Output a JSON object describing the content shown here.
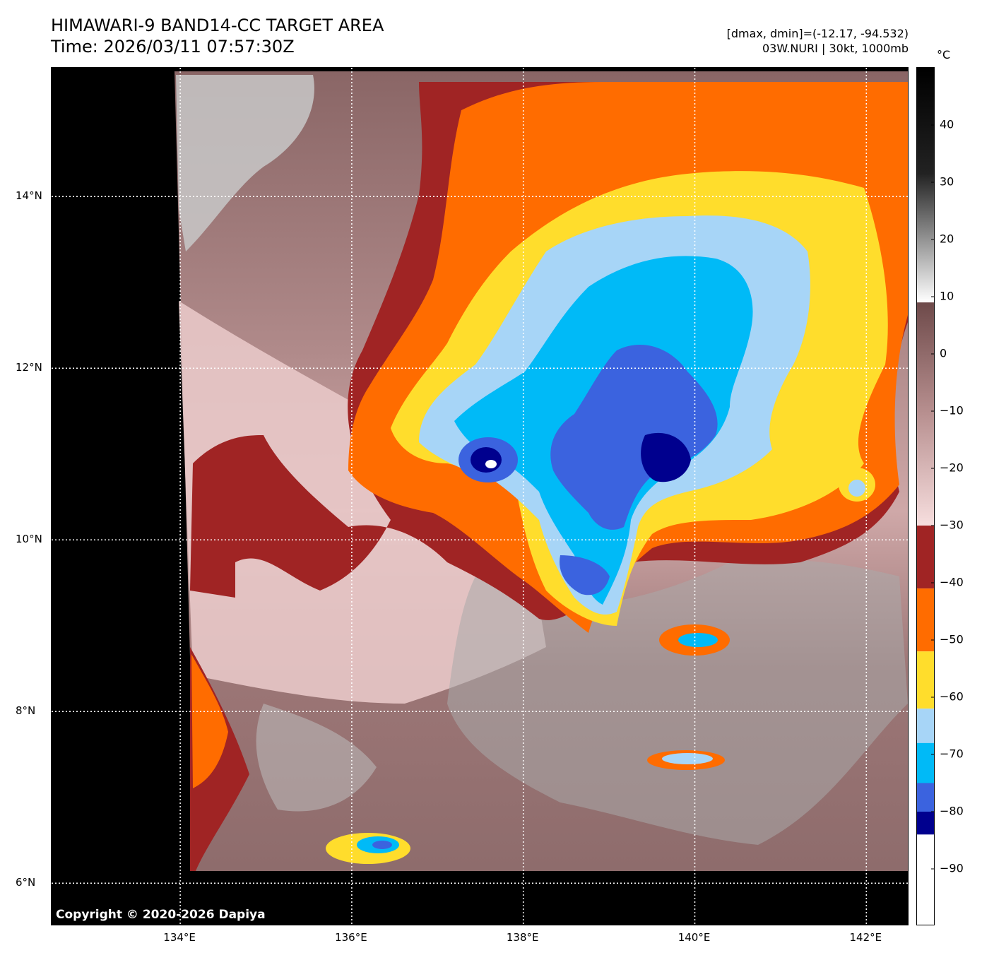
{
  "header": {
    "title_line1": "HIMAWARI-9 BAND14-CC TARGET AREA",
    "title_line2": "Time: 2026/03/11 07:57:30Z",
    "dmax_dmin": "[dmax, dmin]=(-12.17, -94.532)",
    "storm": "03W.NURI | 30kt, 1000mb"
  },
  "map": {
    "copyright": "Copyright © 2020-2026 Dapiya",
    "lon_range": [
      132.5,
      142.5
    ],
    "lat_range": [
      5.5,
      15.5
    ],
    "x_ticks": [
      {
        "value": 134,
        "label": "134°E"
      },
      {
        "value": 136,
        "label": "136°E"
      },
      {
        "value": 138,
        "label": "138°E"
      },
      {
        "value": 140,
        "label": "140°E"
      },
      {
        "value": 142,
        "label": "142°E"
      }
    ],
    "y_ticks": [
      {
        "value": 14,
        "label": "14°N"
      },
      {
        "value": 12,
        "label": "12°N"
      },
      {
        "value": 10,
        "label": "10°N"
      },
      {
        "value": 8,
        "label": "8°N"
      },
      {
        "value": 6,
        "label": "6°N"
      }
    ],
    "grid": true
  },
  "colorbar": {
    "unit": "°C",
    "range": [
      -100,
      50
    ],
    "ticks": [
      {
        "value": 40,
        "label": "40"
      },
      {
        "value": 30,
        "label": "30"
      },
      {
        "value": 20,
        "label": "20"
      },
      {
        "value": 10,
        "label": "10"
      },
      {
        "value": 0,
        "label": "0"
      },
      {
        "value": -10,
        "label": "−10"
      },
      {
        "value": -20,
        "label": "−20"
      },
      {
        "value": -30,
        "label": "−30"
      },
      {
        "value": -40,
        "label": "−40"
      },
      {
        "value": -50,
        "label": "−50"
      },
      {
        "value": -60,
        "label": "−60"
      },
      {
        "value": -70,
        "label": "−70"
      },
      {
        "value": -80,
        "label": "−80"
      },
      {
        "value": -90,
        "label": "−90"
      }
    ],
    "bands": [
      {
        "from": 9,
        "to": 50,
        "kind": "gray"
      },
      {
        "from": -30,
        "to": 9,
        "kind": "brown"
      },
      {
        "from": -41,
        "to": -30,
        "color": "#a02424"
      },
      {
        "from": -52,
        "to": -41,
        "color": "#ff6c00"
      },
      {
        "from": -62,
        "to": -52,
        "color": "#ffdd2c"
      },
      {
        "from": -68,
        "to": -62,
        "color": "#a7d5f7"
      },
      {
        "from": -75,
        "to": -68,
        "color": "#00baf7"
      },
      {
        "from": -80,
        "to": -75,
        "color": "#3b63df"
      },
      {
        "from": -84,
        "to": -80,
        "color": "#00008e"
      },
      {
        "from": -100,
        "to": -84,
        "color": "#ffffff"
      }
    ]
  }
}
